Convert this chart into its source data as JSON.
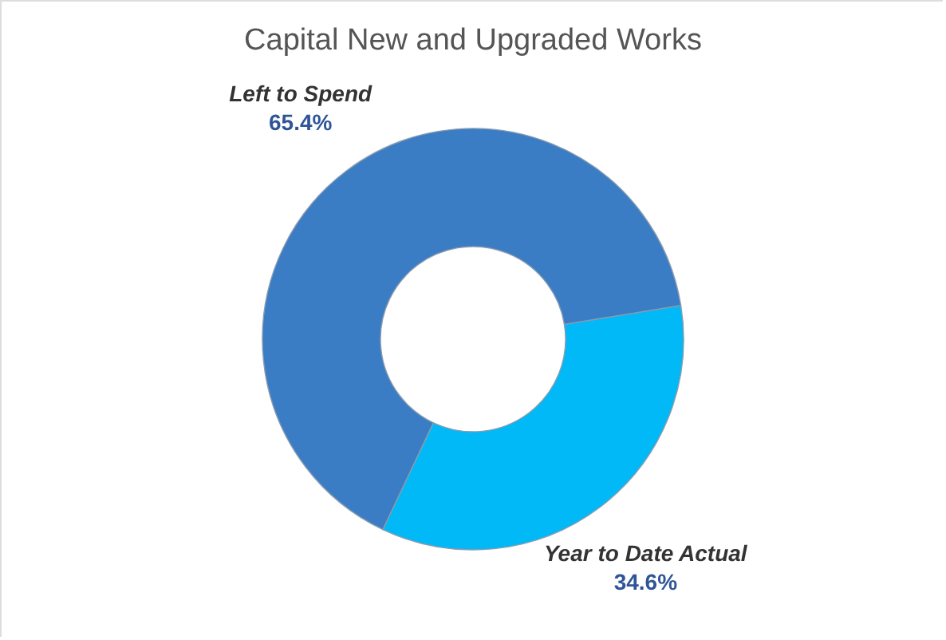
{
  "chart_data": {
    "type": "donut",
    "title": "Capital New and Upgraded Works",
    "categories": [
      "Year to Date Actual",
      "Left to Spend"
    ],
    "values": [
      34.6,
      65.4
    ],
    "colors": [
      "#00b9f6",
      "#3a7dc4"
    ],
    "value_labels": [
      "34.6%",
      "65.4%"
    ],
    "legend": false
  }
}
